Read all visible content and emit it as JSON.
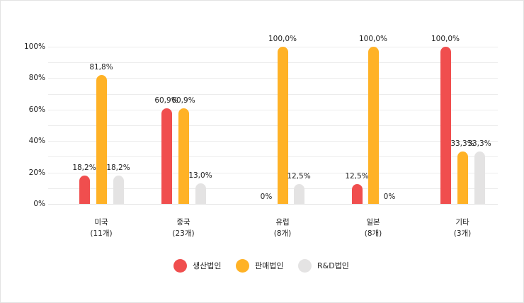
{
  "chart_data": {
    "type": "bar",
    "title": "",
    "xlabel": "",
    "ylabel": "",
    "ylim": [
      0,
      100
    ],
    "y_ticks": [
      "0%",
      "20%",
      "40%",
      "60%",
      "80%",
      "100%"
    ],
    "grid": true,
    "minor_grid_step": 10,
    "legend_position": "bottom",
    "categories": [
      "미국",
      "중국",
      "유럽",
      "일본",
      "기타"
    ],
    "category_counts": [
      "(11개)",
      "(23개)",
      "(8개)",
      "(8개)",
      "(3개)"
    ],
    "series": [
      {
        "name": "생산법인",
        "color": "#f04e4e",
        "values": [
          18.2,
          60.9,
          0,
          12.5,
          100.0
        ],
        "labels": [
          "18,2%",
          "60,9%",
          "0%",
          "12,5%",
          "100,0%"
        ]
      },
      {
        "name": "판매법인",
        "color": "#ffb226",
        "values": [
          81.8,
          60.9,
          100.0,
          100.0,
          33.3
        ],
        "labels": [
          "81,8%",
          "60,9%",
          "100,0%",
          "100,0%",
          "33,3%"
        ]
      },
      {
        "name": "R&D법인",
        "color": "#e4e3e3",
        "values": [
          18.2,
          13.0,
          12.5,
          0,
          33.3
        ],
        "labels": [
          "18,2%",
          "13,0%",
          "12,5%",
          "0%",
          "33,3%"
        ]
      }
    ]
  }
}
